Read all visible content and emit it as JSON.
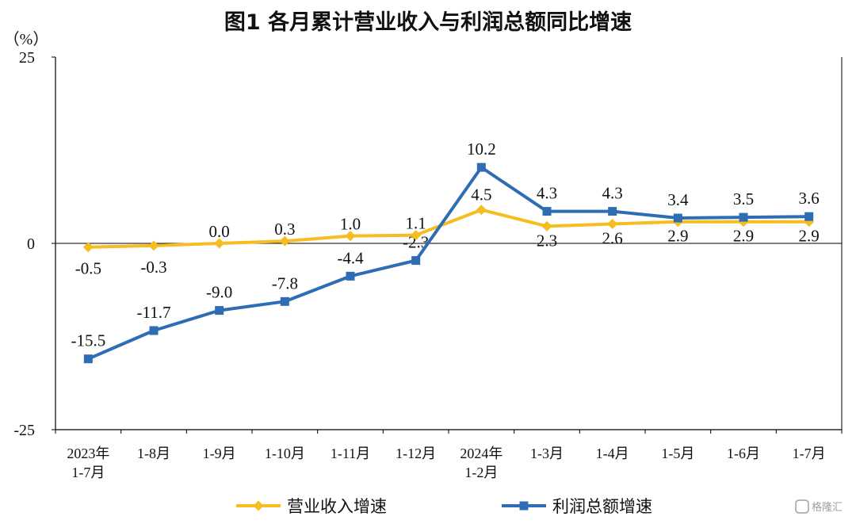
{
  "colors": {
    "revenue": "#F5BD1F",
    "profit": "#2E6DB4",
    "axis": "#000000",
    "watermark": "#9aa0a6"
  },
  "watermark": "格隆汇",
  "chart_data": {
    "type": "line",
    "title": "图1  各月累计营业收入与利润总额同比增速",
    "unit_label": "（%）",
    "categories": [
      [
        "2023年",
        "1-7月"
      ],
      [
        "1-8月"
      ],
      [
        "1-9月"
      ],
      [
        "1-10月"
      ],
      [
        "1-11月"
      ],
      [
        "1-12月"
      ],
      [
        "2024年",
        "1-2月"
      ],
      [
        "1-3月"
      ],
      [
        "1-4月"
      ],
      [
        "1-5月"
      ],
      [
        "1-6月"
      ],
      [
        "1-7月"
      ]
    ],
    "ylim": [
      -25,
      25
    ],
    "yticks": [
      25,
      0,
      -25
    ],
    "grid": false,
    "legend": "bottom",
    "series": [
      {
        "name": "营业收入增速",
        "marker": "diamond",
        "values": [
          -0.5,
          -0.3,
          0.0,
          0.3,
          1.0,
          1.1,
          4.5,
          2.3,
          2.6,
          2.9,
          2.9,
          2.9
        ],
        "labels": [
          "-0.5",
          "-0.3",
          "0.0",
          "0.3",
          "1.0",
          "1.1",
          "4.5",
          "2.3",
          "2.6",
          "2.9",
          "2.9",
          "2.9"
        ]
      },
      {
        "name": "利润总额增速",
        "marker": "square",
        "values": [
          -15.5,
          -11.7,
          -9.0,
          -7.8,
          -4.4,
          -2.3,
          10.2,
          4.3,
          4.3,
          3.4,
          3.5,
          3.6
        ],
        "labels": [
          "-15.5",
          "-11.7",
          "-9.0",
          "-7.8",
          "-4.4",
          "-2.3",
          "10.2",
          "4.3",
          "4.3",
          "3.4",
          "3.5",
          "3.6"
        ]
      }
    ]
  }
}
